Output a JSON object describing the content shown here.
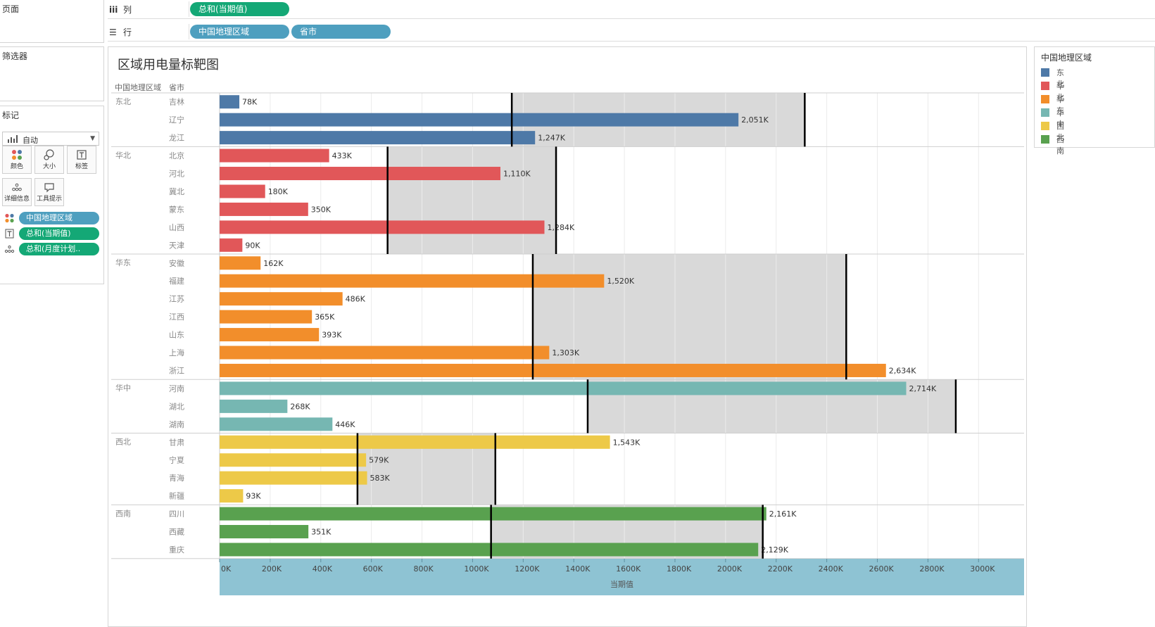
{
  "panels": {
    "pages_title": "页面",
    "filters_title": "筛选器",
    "marks_title": "标记"
  },
  "marks": {
    "type_label": "自动",
    "buttons": [
      {
        "label": "颜色",
        "icon": "color-dots-icon"
      },
      {
        "label": "大小",
        "icon": "size-circles-icon"
      },
      {
        "label": "标签",
        "icon": "label-text-icon"
      },
      {
        "label": "详细信息",
        "icon": "detail-dots-icon"
      },
      {
        "label": "工具提示",
        "icon": "tooltip-bubble-icon"
      }
    ],
    "pills": [
      {
        "icon": "color-dots-icon",
        "label": "中国地理区域",
        "kind": "dimension"
      },
      {
        "icon": "label-text-icon",
        "label": "总和(当期值)",
        "kind": "measure"
      },
      {
        "icon": "detail-dots-icon",
        "label": "总和(月度计划..",
        "kind": "measure"
      }
    ]
  },
  "shelves": {
    "columns_label": "列",
    "columns_pills": [
      "总和(当期值)"
    ],
    "rows_label": "行",
    "rows_pills": [
      "中国地理区域",
      "省市"
    ]
  },
  "view": {
    "title": "区域用电量标靶图",
    "header_region": "中国地理区域",
    "header_province": "省市"
  },
  "legend": {
    "title": "中国地理区域",
    "items": [
      {
        "label": "东北",
        "color": "#4e79a7"
      },
      {
        "label": "华北",
        "color": "#e15759"
      },
      {
        "label": "华东",
        "color": "#f28e2b"
      },
      {
        "label": "华中",
        "color": "#76b7b2"
      },
      {
        "label": "西北",
        "color": "#edc948"
      },
      {
        "label": "西南",
        "color": "#59a14f"
      }
    ]
  },
  "chart_data": {
    "type": "bar",
    "orientation": "horizontal",
    "x_axis": {
      "title": "当期值",
      "min": 0,
      "max": 3180,
      "ticks": [
        0,
        200,
        400,
        600,
        800,
        1000,
        1200,
        1400,
        1600,
        1800,
        2000,
        2200,
        2400,
        2600,
        2800,
        3000
      ],
      "tick_labels": [
        "0K",
        "200K",
        "400K",
        "600K",
        "800K",
        "1000K",
        "1200K",
        "1400K",
        "1600K",
        "1800K",
        "2000K",
        "2200K",
        "2400K",
        "2600K",
        "2800K",
        "3000K"
      ]
    },
    "groups": [
      {
        "region": "东北",
        "color": "#4e79a7",
        "band": [
          1155,
          2313
        ],
        "ref_lines": [
          1155,
          2313
        ],
        "rows": [
          {
            "province": "吉林",
            "value": 78,
            "label": "78K"
          },
          {
            "province": "辽宁",
            "value": 2051,
            "label": "2,051K"
          },
          {
            "province": "龙江",
            "value": 1247,
            "label": "1,247K"
          }
        ]
      },
      {
        "region": "华北",
        "color": "#e15759",
        "band": [
          664,
          1330
        ],
        "ref_lines": [
          664,
          1330
        ],
        "rows": [
          {
            "province": "北京",
            "value": 433,
            "label": "433K"
          },
          {
            "province": "河北",
            "value": 1110,
            "label": "1,110K"
          },
          {
            "province": "冀北",
            "value": 180,
            "label": "180K"
          },
          {
            "province": "蒙东",
            "value": 350,
            "label": "350K"
          },
          {
            "province": "山西",
            "value": 1284,
            "label": "1,284K"
          },
          {
            "province": "天津",
            "value": 90,
            "label": "90K"
          }
        ]
      },
      {
        "region": "华东",
        "color": "#f28e2b",
        "band": [
          1238,
          2477
        ],
        "ref_lines": [
          1238,
          2477
        ],
        "rows": [
          {
            "province": "安徽",
            "value": 162,
            "label": "162K"
          },
          {
            "province": "福建",
            "value": 1520,
            "label": "1,520K"
          },
          {
            "province": "江苏",
            "value": 486,
            "label": "486K"
          },
          {
            "province": "江西",
            "value": 365,
            "label": "365K"
          },
          {
            "province": "山东",
            "value": 393,
            "label": "393K"
          },
          {
            "province": "上海",
            "value": 1303,
            "label": "1,303K"
          },
          {
            "province": "浙江",
            "value": 2634,
            "label": "2,634K"
          }
        ]
      },
      {
        "region": "华中",
        "color": "#76b7b2",
        "band": [
          1455,
          2910
        ],
        "ref_lines": [
          1455,
          2910
        ],
        "rows": [
          {
            "province": "河南",
            "value": 2714,
            "label": "2,714K"
          },
          {
            "province": "湖北",
            "value": 268,
            "label": "268K"
          },
          {
            "province": "湖南",
            "value": 446,
            "label": "446K"
          }
        ]
      },
      {
        "region": "西北",
        "color": "#edc948",
        "band": [
          545,
          1090
        ],
        "ref_lines": [
          545,
          1090
        ],
        "rows": [
          {
            "province": "甘肃",
            "value": 1543,
            "label": "1,543K"
          },
          {
            "province": "宁夏",
            "value": 579,
            "label": "579K"
          },
          {
            "province": "青海",
            "value": 583,
            "label": "583K"
          },
          {
            "province": "新疆",
            "value": 93,
            "label": "93K"
          }
        ]
      },
      {
        "region": "西南",
        "color": "#59a14f",
        "band": [
          1073,
          2147
        ],
        "ref_lines": [
          1073,
          2147
        ],
        "rows": [
          {
            "province": "四川",
            "value": 2161,
            "label": "2,161K"
          },
          {
            "province": "西藏",
            "value": 351,
            "label": "351K"
          },
          {
            "province": "重庆",
            "value": 2129,
            "label": "2,129K"
          }
        ]
      }
    ]
  }
}
